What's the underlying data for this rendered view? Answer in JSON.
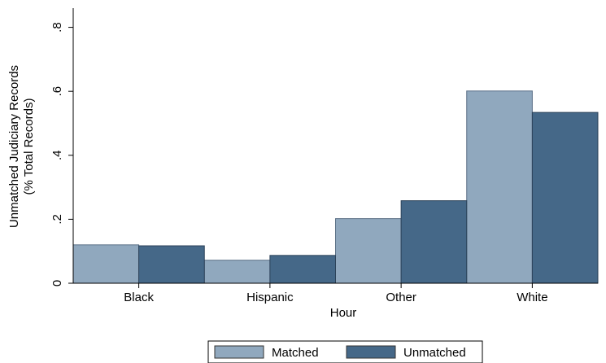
{
  "chart_data": {
    "type": "bar",
    "xlabel": "Hour",
    "ylabel_line1": "Unmatched Judiciary Records",
    "ylabel_line2": "(% Total Records)",
    "ylim": [
      0,
      0.86
    ],
    "yticks": [
      0,
      0.2,
      0.4,
      0.6,
      0.8
    ],
    "ytick_labels": [
      "0",
      ".2",
      ".4",
      ".6",
      ".8"
    ],
    "categories": [
      "Black",
      "Hispanic",
      "Other",
      "White"
    ],
    "grid": false,
    "legend_position": "bottom",
    "series": [
      {
        "name": "Matched",
        "color": "#90a8be",
        "values": [
          0.12,
          0.072,
          0.202,
          0.601
        ]
      },
      {
        "name": "Unmatched",
        "color": "#456888",
        "values": [
          0.117,
          0.087,
          0.258,
          0.534
        ]
      }
    ]
  }
}
